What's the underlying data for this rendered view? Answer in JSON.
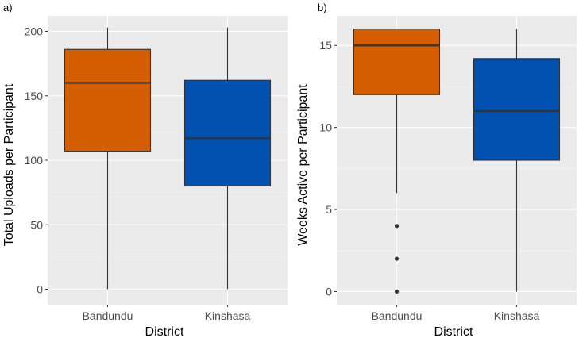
{
  "colors": {
    "panel_bg": "#ebebeb",
    "grid_major": "#ffffff",
    "grid_minor": "#f5f5f5",
    "box_stroke": "#333333",
    "tick_text": "#4d4d4d",
    "label_text": "#000000",
    "bandundu": "#d55e00",
    "kinshasa": "#0051b0"
  },
  "chart_data": [
    {
      "type": "boxplot",
      "panel_label": "a)",
      "xlabel": "District",
      "ylabel": "Total Uploads per Participant",
      "categories": [
        "Bandundu",
        "Kinshasa"
      ],
      "ylim": [
        -12,
        212
      ],
      "yticks": [
        0,
        50,
        100,
        150,
        200
      ],
      "grid": true,
      "series": [
        {
          "name": "Bandundu",
          "min": 0,
          "q1": 107,
          "median": 160,
          "q3": 186,
          "max": 203,
          "outliers": []
        },
        {
          "name": "Kinshasa",
          "min": 0,
          "q1": 80,
          "median": 117,
          "q3": 162,
          "max": 203,
          "outliers": []
        }
      ]
    },
    {
      "type": "boxplot",
      "panel_label": "b)",
      "xlabel": "District",
      "ylabel": "Weeks Active per Participant",
      "categories": [
        "Bandundu",
        "Kinshasa"
      ],
      "ylim": [
        -0.8,
        16.8
      ],
      "yticks": [
        0,
        5,
        10,
        15
      ],
      "grid": true,
      "series": [
        {
          "name": "Bandundu",
          "min": 6,
          "q1": 12,
          "median": 15,
          "q3": 16,
          "max": 16,
          "outliers": [
            0,
            2,
            4
          ]
        },
        {
          "name": "Kinshasa",
          "min": 0,
          "q1": 8,
          "median": 11,
          "q3": 14.2,
          "max": 16,
          "outliers": []
        }
      ]
    }
  ]
}
